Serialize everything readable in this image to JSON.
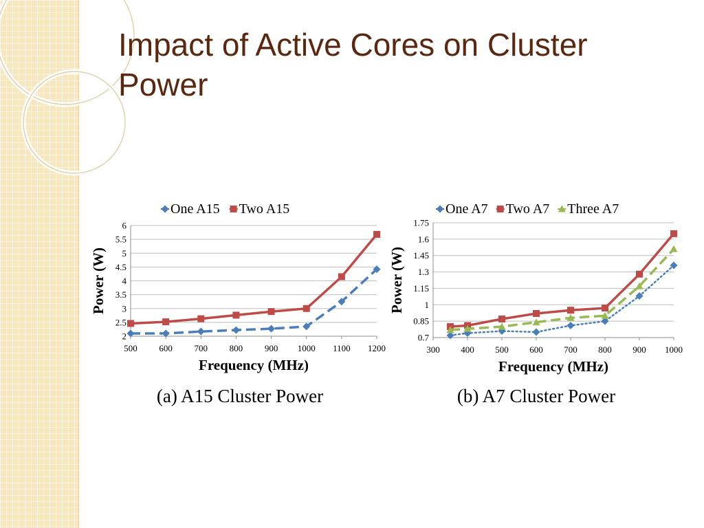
{
  "slide": {
    "title": "Impact of Active Cores on Cluster Power"
  },
  "colors": {
    "title": "#5a2810",
    "strip": "#f6e7bf",
    "grid": "#bfbfbf"
  },
  "chart_data": [
    {
      "type": "line",
      "caption": "(a) A15 Cluster Power",
      "xlabel": "Frequency (MHz)",
      "ylabel": "Power (W)",
      "legend_position": "top",
      "grid": true,
      "x": [
        500,
        600,
        700,
        800,
        900,
        1000,
        1100,
        1200
      ],
      "xlim": [
        500,
        1200
      ],
      "xticks": [
        "500",
        "600",
        "700",
        "800",
        "900",
        "1000",
        "1100",
        "1200"
      ],
      "ylim": [
        2,
        6
      ],
      "yticks": [
        "2",
        "2.5",
        "3",
        "3.5",
        "4",
        "4.5",
        "5",
        "5.5",
        "6"
      ],
      "series": [
        {
          "name": "One A15",
          "color": "#4a7ebb",
          "style": "dashed",
          "marker": "diamond",
          "values": [
            2.1,
            2.1,
            2.17,
            2.22,
            2.27,
            2.35,
            3.25,
            4.42
          ]
        },
        {
          "name": "Two  A15",
          "color": "#be4b48",
          "style": "solid",
          "marker": "square",
          "values": [
            2.46,
            2.52,
            2.63,
            2.76,
            2.89,
            3.0,
            4.15,
            5.68
          ]
        }
      ]
    },
    {
      "type": "line",
      "caption": "(b) A7 Cluster Power",
      "xlabel": "Frequency (MHz)",
      "ylabel": "Power (W)",
      "legend_position": "top",
      "grid": true,
      "xlim": [
        300,
        1000
      ],
      "xticks": [
        "300",
        "400",
        "500",
        "600",
        "700",
        "800",
        "900",
        "1000"
      ],
      "ylim": [
        0.7,
        1.75
      ],
      "yticks": [
        "0.7",
        "0.85",
        "1",
        "1.15",
        "1.3",
        "1.45",
        "1.6",
        "1.75"
      ],
      "series": [
        {
          "name": "One A7",
          "color": "#4a7ebb",
          "style": "dotted",
          "marker": "diamond",
          "x": [
            350,
            400,
            500,
            600,
            700,
            800,
            900,
            1000
          ],
          "values": [
            0.72,
            0.74,
            0.76,
            0.75,
            0.81,
            0.85,
            1.08,
            1.36
          ]
        },
        {
          "name": "Two A7",
          "color": "#be4b48",
          "style": "solid",
          "marker": "square",
          "x": [
            350,
            400,
            500,
            600,
            700,
            800,
            900,
            1000
          ],
          "values": [
            0.8,
            0.81,
            0.87,
            0.92,
            0.95,
            0.97,
            1.28,
            1.65
          ]
        },
        {
          "name": "Three A7",
          "color": "#98b954",
          "style": "dashed",
          "marker": "triangle",
          "x": [
            350,
            400,
            500,
            600,
            700,
            800,
            900,
            1000
          ],
          "values": [
            0.77,
            0.78,
            0.8,
            0.84,
            0.88,
            0.9,
            1.17,
            1.51
          ]
        }
      ]
    }
  ]
}
